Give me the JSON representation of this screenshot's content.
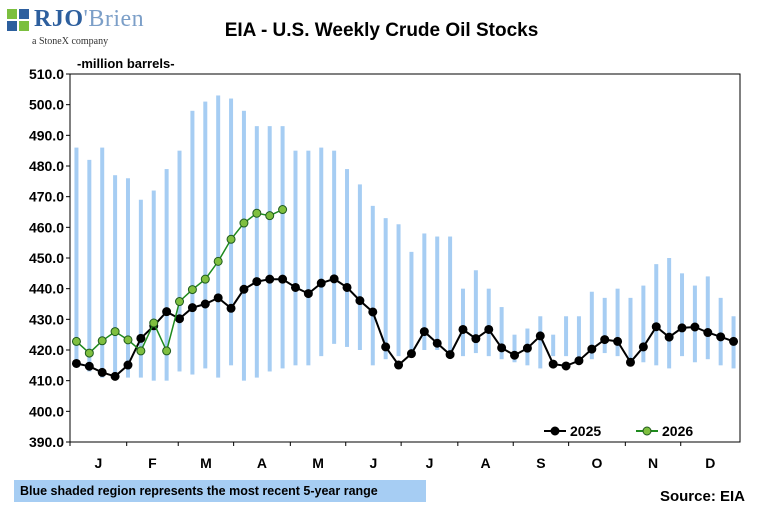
{
  "logo": {
    "brand_part1": "RJO",
    "brand_part2": "'Brien",
    "tagline": "a StoneX company",
    "mark_colors": [
      "#7bbf3f",
      "#2d5f9e"
    ]
  },
  "chart_data": {
    "type": "line",
    "title": "EIA - U.S. Weekly Crude Oil Stocks",
    "ylabel": "-million barrels-",
    "ylim": [
      390,
      510
    ],
    "ytick_step": 10,
    "ytick_format": "one-decimal",
    "grid": false,
    "x_tick_labels": [
      "J",
      "F",
      "M",
      "A",
      "M",
      "J",
      "J",
      "A",
      "S",
      "O",
      "N",
      "D"
    ],
    "weeks": 52,
    "range": {
      "name": "5-year range",
      "color": "#a6cdf3",
      "low": [
        416,
        413,
        411,
        412,
        411,
        411,
        410,
        410,
        413,
        412,
        414,
        411,
        415,
        410,
        411,
        413,
        414,
        415,
        415,
        418,
        422,
        421,
        420,
        415,
        417,
        418,
        420,
        420,
        420,
        419,
        418,
        419,
        418,
        417,
        416,
        415,
        414,
        418,
        418,
        417,
        417,
        419,
        418,
        417,
        416,
        415,
        414,
        418,
        416,
        417,
        415,
        414
      ],
      "high": [
        486,
        482,
        486,
        477,
        476,
        469,
        472,
        479,
        485,
        498,
        501,
        503,
        502,
        498,
        493,
        493,
        493,
        485,
        485,
        486,
        485,
        479,
        474,
        467,
        463,
        461,
        452,
        458,
        457,
        457,
        440,
        446,
        440,
        434,
        425,
        427,
        431,
        425,
        431,
        431,
        439,
        437,
        440,
        437,
        441,
        448,
        450,
        445,
        441,
        444,
        437,
        431
      ]
    },
    "series": [
      {
        "name": "2025",
        "color": "#000000",
        "marker_fill": "#000000",
        "values": [
          415.6,
          414.7,
          412.7,
          411.4,
          415.1,
          423.8,
          427.9,
          432.5,
          430.2,
          433.8,
          435.0,
          437.0,
          433.6,
          439.8,
          442.3,
          443.1,
          443.1,
          440.4,
          438.4,
          441.8,
          443.2,
          440.4,
          436.1,
          432.4,
          421.0,
          415.1,
          418.8,
          426.0,
          422.2,
          418.5,
          426.7,
          423.7,
          426.7,
          420.7,
          418.3,
          420.6,
          424.6,
          415.4,
          414.8,
          416.5,
          420.3,
          423.4,
          422.8,
          416.0,
          421.0,
          427.6,
          424.2,
          427.2,
          427.5,
          425.7,
          424.3,
          422.8
        ]
      },
      {
        "name": "2026",
        "color": "#1e8a1e",
        "marker_fill": "#7fbf3f",
        "values": [
          422.8,
          419.0,
          423.0,
          426.0,
          423.3,
          419.7,
          428.8,
          419.7,
          435.8,
          439.7,
          443.1,
          448.9,
          456.1,
          461.4,
          464.6,
          463.8,
          465.8
        ]
      }
    ],
    "legend": {
      "placement": "bottom-right",
      "entries": [
        "2025",
        "2026"
      ]
    }
  },
  "note": "Blue shaded region represents the most recent 5-year range",
  "source": "Source: EIA"
}
